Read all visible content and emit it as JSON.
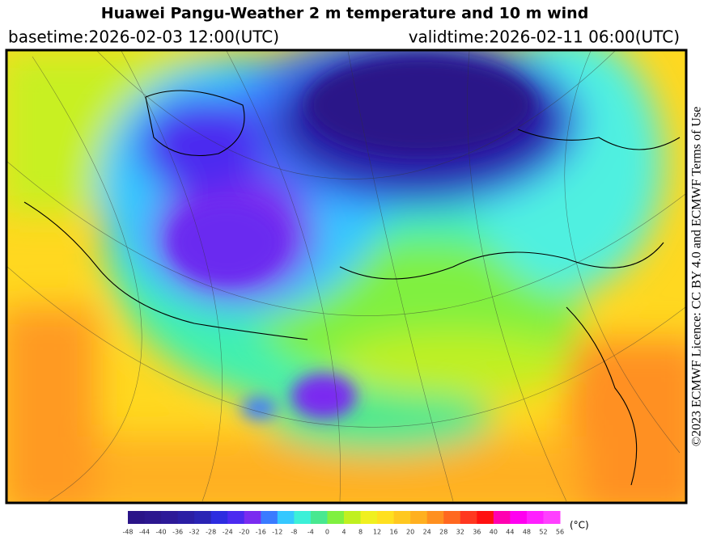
{
  "header": {
    "title": "Huawei Pangu-Weather  2 m temperature and 10 m wind",
    "basetime": "basetime:2026-02-03 12:00(UTC)",
    "validtime": "validtime:2026-02-11 06:00(UTC)"
  },
  "credit": "©2023 ECMWF Licence: CC BY 4.0 and ECMWF Terms of Use",
  "colorbar": {
    "ticks": [
      -48,
      -44,
      -40,
      -36,
      -32,
      -28,
      -24,
      -20,
      -16,
      -12,
      -8,
      -4,
      0,
      4,
      8,
      12,
      16,
      20,
      24,
      28,
      32,
      36,
      40,
      44,
      48,
      52,
      56
    ],
    "colors": [
      "#2a1488",
      "#2c178f",
      "#2d1a98",
      "#2b1ea4",
      "#2a24b4",
      "#2d2ce0",
      "#4b2af0",
      "#7a2cf0",
      "#3a7bff",
      "#35c8ff",
      "#3cf0d8",
      "#48e890",
      "#80f040",
      "#c0f020",
      "#f0f020",
      "#ffe020",
      "#ffc820",
      "#ffb020",
      "#ff9020",
      "#ff6820",
      "#ff3820",
      "#ff1010",
      "#ff00b0",
      "#ff00f0",
      "#ff20ff",
      "#ff40ff"
    ],
    "unit": "(°C)"
  }
}
